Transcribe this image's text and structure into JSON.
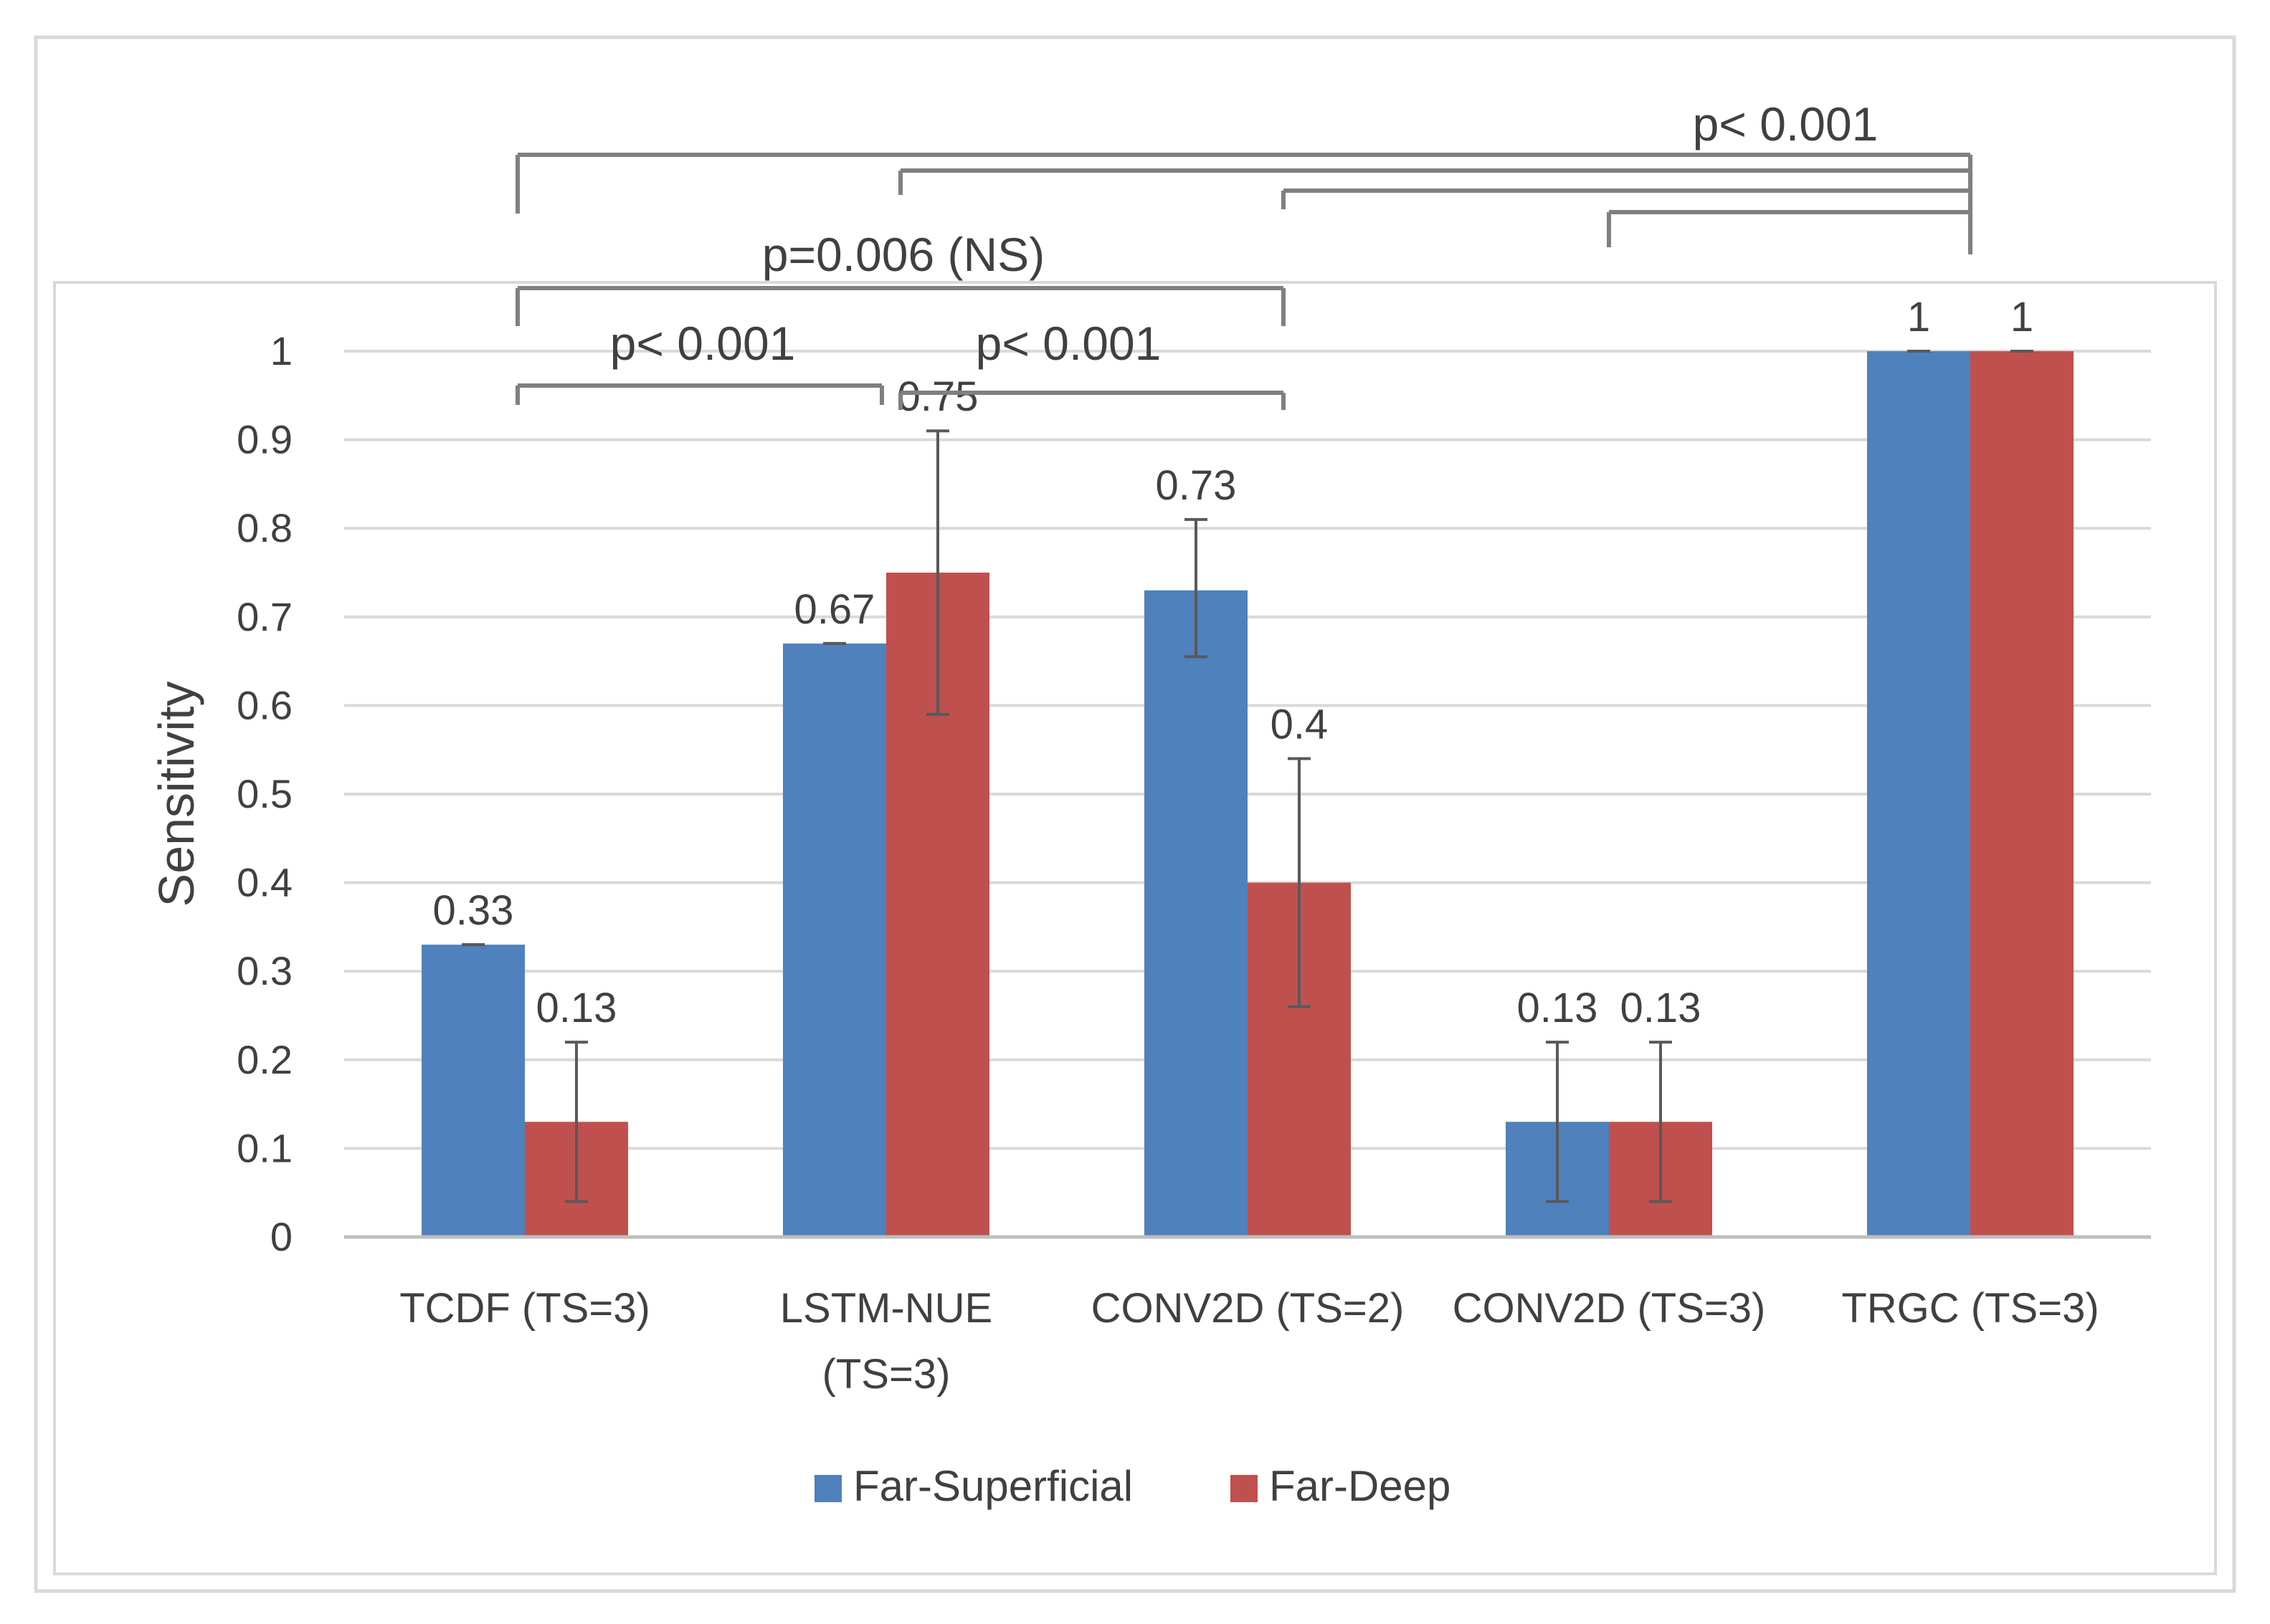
{
  "chart_data": {
    "type": "bar",
    "title": "",
    "xlabel": "",
    "ylabel": "Sensitivity",
    "ylim": [
      0,
      1
    ],
    "yticks": [
      "0",
      "0.1",
      "0.2",
      "0.3",
      "0.4",
      "0.5",
      "0.6",
      "0.7",
      "0.8",
      "0.9",
      "1"
    ],
    "grid": true,
    "categories": [
      [
        "TCDF (TS=3)"
      ],
      [
        "LSTM-NUE",
        "(TS=3)"
      ],
      [
        "CONV2D (TS=2)"
      ],
      [
        "CONV2D (TS=3)"
      ],
      [
        "TRGC (TS=3)"
      ]
    ],
    "series": [
      {
        "name": "Far-Superficial",
        "color": "#4f81bd",
        "values": [
          0.33,
          0.67,
          0.73,
          0.13,
          1
        ],
        "labels": [
          "0.33",
          "0.67",
          "0.73",
          "0.13",
          "1"
        ],
        "error_low": [
          0.33,
          0.67,
          0.655,
          0.04,
          1
        ],
        "error_high": [
          0.33,
          0.67,
          0.81,
          0.22,
          1
        ]
      },
      {
        "name": "Far-Deep",
        "color": "#c0504d",
        "values": [
          0.13,
          0.75,
          0.4,
          0.13,
          1
        ],
        "labels": [
          "0.13",
          "0.75",
          "0.4",
          "0.13",
          "1"
        ],
        "error_low": [
          0.04,
          0.59,
          0.26,
          0.04,
          1
        ],
        "error_high": [
          0.22,
          0.91,
          0.54,
          0.22,
          1
        ]
      }
    ],
    "significance": [
      {
        "from": 0,
        "to": 1,
        "label": "p< 0.001"
      },
      {
        "from": 1,
        "to": 2,
        "label": "p< 0.001"
      },
      {
        "from": 0,
        "to": 2,
        "label": "p=0.006 (NS)"
      },
      {
        "from": [
          0,
          1,
          2,
          3
        ],
        "to": 4,
        "label": "p< 0.001"
      }
    ],
    "legend": {
      "position": "bottom",
      "items": [
        "Far-Superficial",
        "Far-Deep"
      ]
    }
  }
}
